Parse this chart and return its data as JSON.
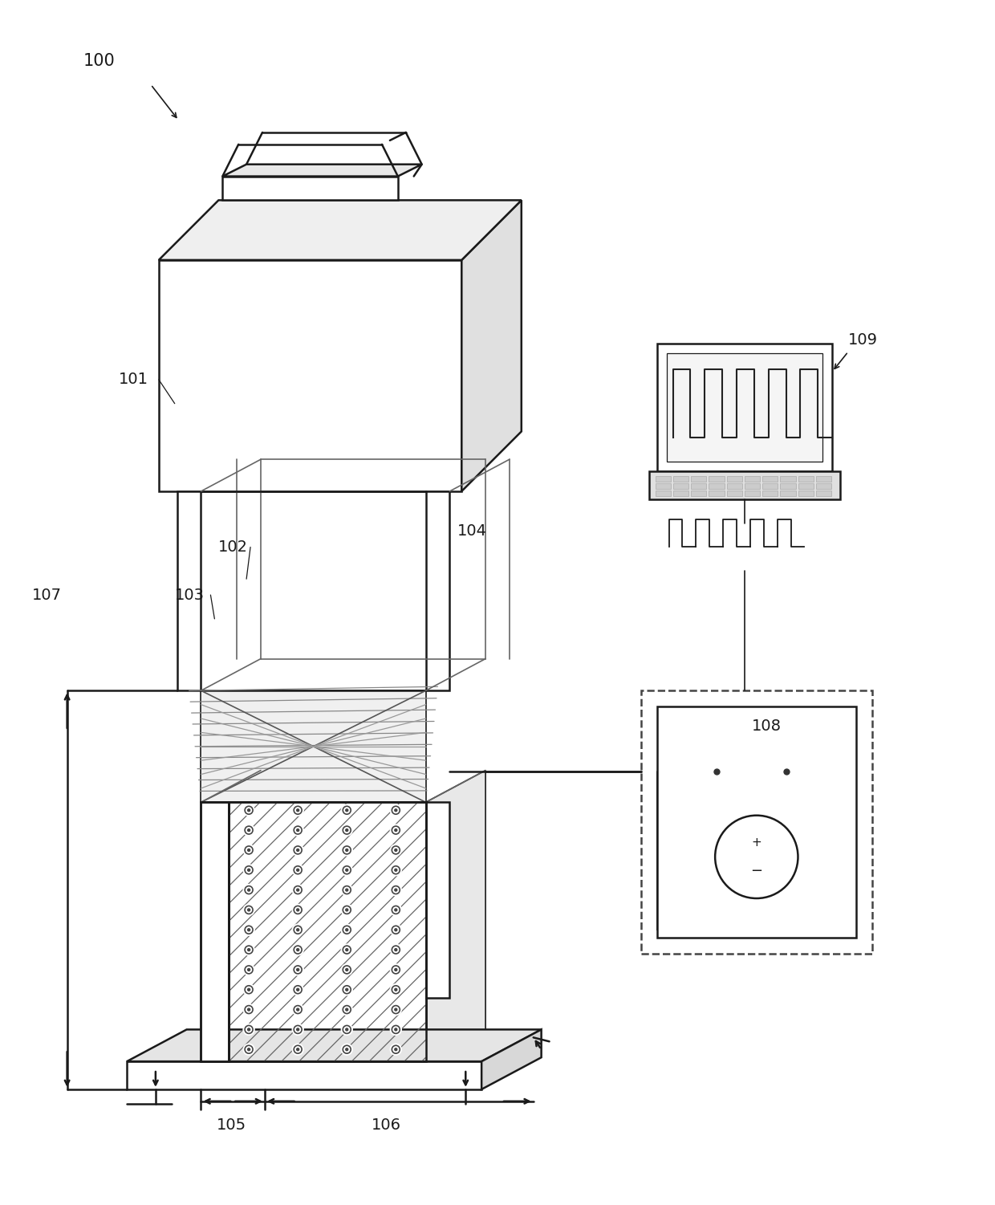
{
  "bg_color": "#ffffff",
  "lc": "#1a1a1a",
  "figsize": [
    12.4,
    15.01
  ],
  "dpi": 100,
  "label_fs": 14
}
